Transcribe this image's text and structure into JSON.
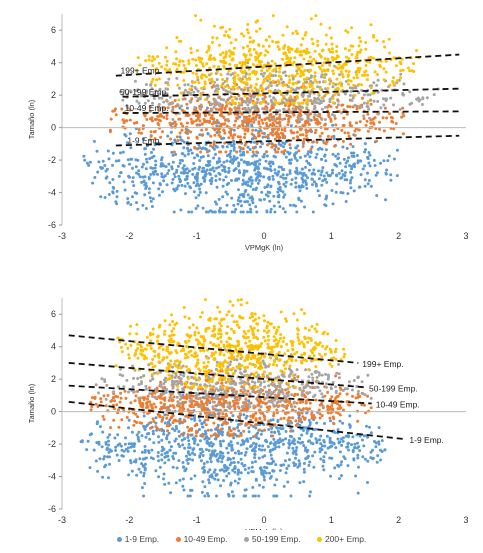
{
  "chart_data": [
    {
      "type": "scatter",
      "title": "",
      "xlabel": "VPMgK (ln)",
      "ylabel": "Tamaño (ln)",
      "xlim": [
        -3,
        3
      ],
      "ylim": [
        -6,
        7
      ],
      "xticks": [
        "-3",
        "-2",
        "-1",
        "0",
        "1",
        "2",
        "3"
      ],
      "yticks": [
        "-6",
        "-4",
        "-2",
        "0",
        "2",
        "4",
        "6"
      ],
      "grid": false,
      "series": [
        {
          "name": "1-9 Emp.",
          "color": "#5B9BD5",
          "x_range": [
            -2.7,
            2.0
          ],
          "y_range": [
            -5.2,
            1.2
          ],
          "y_center": -2.6
        },
        {
          "name": "10-49 Emp.",
          "color": "#ED7D31",
          "x_range": [
            -2.3,
            2.1
          ],
          "y_range": [
            -1.5,
            2.8
          ],
          "y_center": 0.5
        },
        {
          "name": "50-199 Emp.",
          "color": "#A5A5A5",
          "x_range": [
            -2.2,
            2.6
          ],
          "y_range": [
            0.5,
            4.0
          ],
          "y_center": 2.0
        },
        {
          "name": "200+ Emp.",
          "color": "#FFC000",
          "x_range": [
            -1.9,
            2.3
          ],
          "y_range": [
            1.5,
            6.9
          ],
          "y_center": 3.8
        }
      ],
      "trendlines": [
        {
          "label": "199+ Emp.",
          "x": [
            -2.2,
            2.9
          ],
          "y": [
            3.2,
            4.5
          ]
        },
        {
          "label": "50-199 Emp.",
          "x": [
            -2.1,
            2.9
          ],
          "y": [
            1.9,
            2.4
          ]
        },
        {
          "label": "10-49 Emp.",
          "x": [
            -2.1,
            2.9
          ],
          "y": [
            0.9,
            1.0
          ]
        },
        {
          "label": "1-9 Emp.",
          "x": [
            -2.2,
            2.9
          ],
          "y": [
            -1.1,
            -0.5
          ]
        }
      ]
    },
    {
      "type": "scatter",
      "title": "",
      "xlabel": "VPMgL (ln)",
      "ylabel": "Tamaño (ln)",
      "xlim": [
        -3,
        3
      ],
      "ylim": [
        -6,
        7
      ],
      "xticks": [
        "-3",
        "-2",
        "-1",
        "0",
        "1",
        "2",
        "3"
      ],
      "yticks": [
        "-6",
        "-4",
        "-2",
        "0",
        "2",
        "4",
        "6"
      ],
      "grid": false,
      "series": [
        {
          "name": "1-9 Emp.",
          "color": "#5B9BD5",
          "x_range": [
            -2.8,
            1.8
          ],
          "y_range": [
            -5.2,
            1.0
          ],
          "y_center": -2.2
        },
        {
          "name": "10-49 Emp.",
          "color": "#ED7D31",
          "x_range": [
            -2.6,
            1.6
          ],
          "y_range": [
            -1.5,
            2.5
          ],
          "y_center": 0.4
        },
        {
          "name": "50-199 Emp.",
          "color": "#A5A5A5",
          "x_range": [
            -2.5,
            1.6
          ],
          "y_range": [
            0.3,
            3.8
          ],
          "y_center": 1.8
        },
        {
          "name": "200+ Emp.",
          "color": "#FFC000",
          "x_range": [
            -2.2,
            1.2
          ],
          "y_range": [
            1.5,
            6.9
          ],
          "y_center": 3.8
        }
      ],
      "trendlines": [
        {
          "label": "199+ Emp.",
          "x": [
            -2.9,
            1.4
          ],
          "y": [
            4.7,
            3.0
          ]
        },
        {
          "label": "50-199 Emp.",
          "x": [
            -2.9,
            1.5
          ],
          "y": [
            3.0,
            1.5
          ]
        },
        {
          "label": "10-49 Emp.",
          "x": [
            -2.9,
            1.6
          ],
          "y": [
            1.6,
            0.5
          ]
        },
        {
          "label": "1-9 Emp.",
          "x": [
            -2.9,
            2.1
          ],
          "y": [
            0.6,
            -1.7
          ]
        }
      ]
    }
  ],
  "legend": [
    {
      "label": "1-9 Emp.",
      "color": "#5B9BD5"
    },
    {
      "label": "10-49 Emp.",
      "color": "#ED7D31"
    },
    {
      "label": "50-199 Emp.",
      "color": "#A5A5A5"
    },
    {
      "label": "200+ Emp.",
      "color": "#FFC000"
    }
  ]
}
